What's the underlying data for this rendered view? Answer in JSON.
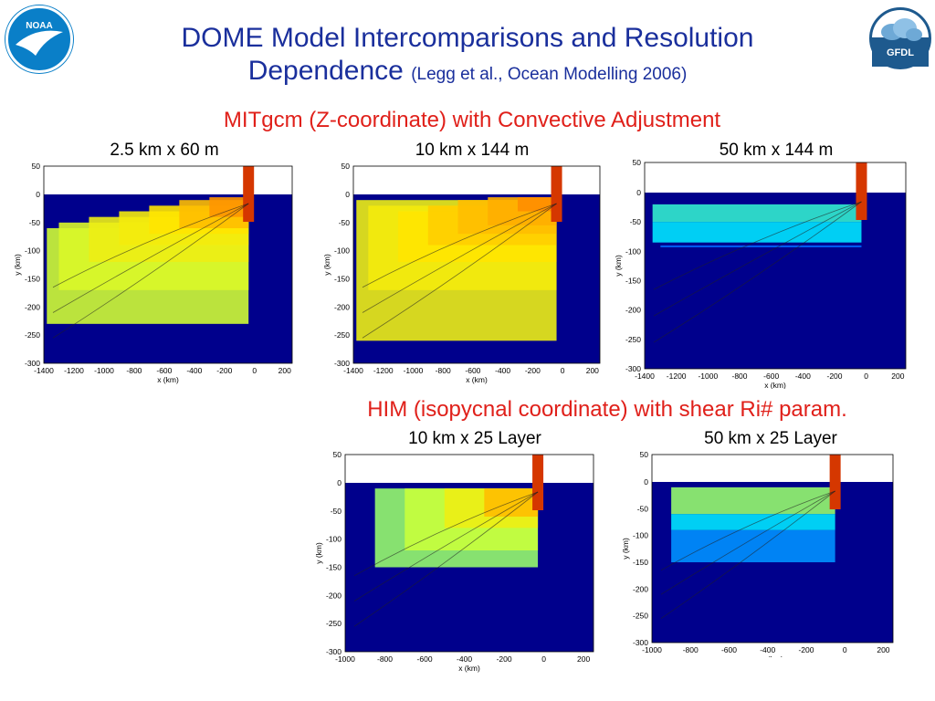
{
  "slide": {
    "title_main": "DOME Model Intercomparisons and Resolution Dependence",
    "title_cite": "(Legg et al., Ocean Modelling 2006)",
    "section_mitgcm": "MITgcm (Z-coordinate) with Convective Adjustment",
    "section_him": "HIM (isopycnal coordinate) with shear Ri# param.",
    "logos": {
      "left": "NOAA",
      "right": "GFDL"
    }
  },
  "panels": [
    {
      "id": "mit-25",
      "label": "2.5 km x 60 m",
      "xlabel": "x (km)",
      "ylabel": "y (km)",
      "xticks": [
        "-1400",
        "-1200",
        "-1000",
        "-800",
        "-600",
        "-400",
        "-200",
        "0",
        "200"
      ],
      "yticks": [
        "50",
        "0",
        "-50",
        "-100",
        "-150",
        "-200",
        "-250",
        "-300"
      ]
    },
    {
      "id": "mit-10",
      "label": "10 km x 144 m",
      "xlabel": "x (km)",
      "ylabel": "y (km)",
      "xticks": [
        "-1400",
        "-1200",
        "-1000",
        "-800",
        "-600",
        "-400",
        "-200",
        "0",
        "200"
      ],
      "yticks": [
        "50",
        "0",
        "-50",
        "-100",
        "-150",
        "-200",
        "-250",
        "-300"
      ]
    },
    {
      "id": "mit-50",
      "label": "50 km x 144 m",
      "xlabel": "x (km)",
      "ylabel": "y (km)",
      "xticks": [
        "-1400",
        "-1200",
        "-1000",
        "-800",
        "-600",
        "-400",
        "-200",
        "0",
        "200"
      ],
      "yticks": [
        "50",
        "0",
        "-50",
        "-100",
        "-150",
        "-200",
        "-250",
        "-300"
      ]
    },
    {
      "id": "him-10",
      "label": "10 km x 25 Layer",
      "xlabel": "x (km)",
      "ylabel": "y (km)",
      "xticks": [
        "-1000",
        "-800",
        "-600",
        "-400",
        "-200",
        "0",
        "200"
      ],
      "yticks": [
        "50",
        "0",
        "-50",
        "-100",
        "-150",
        "-200",
        "-250",
        "-300"
      ]
    },
    {
      "id": "him-50",
      "label": "50 km x 25 Layer",
      "xlabel": "x (km)",
      "ylabel": "y (km)",
      "xticks": [
        "-1000",
        "-800",
        "-600",
        "-400",
        "-200",
        "0",
        "200"
      ],
      "yticks": [
        "50",
        "0",
        "-50",
        "-100",
        "-150",
        "-200",
        "-250",
        "-300"
      ]
    }
  ],
  "colors": {
    "title": "#1a2f9c",
    "section": "#e0201a",
    "ocean": "#00008c",
    "noaa": "#0a7fc8",
    "gfdl": "#1e5a8e"
  }
}
